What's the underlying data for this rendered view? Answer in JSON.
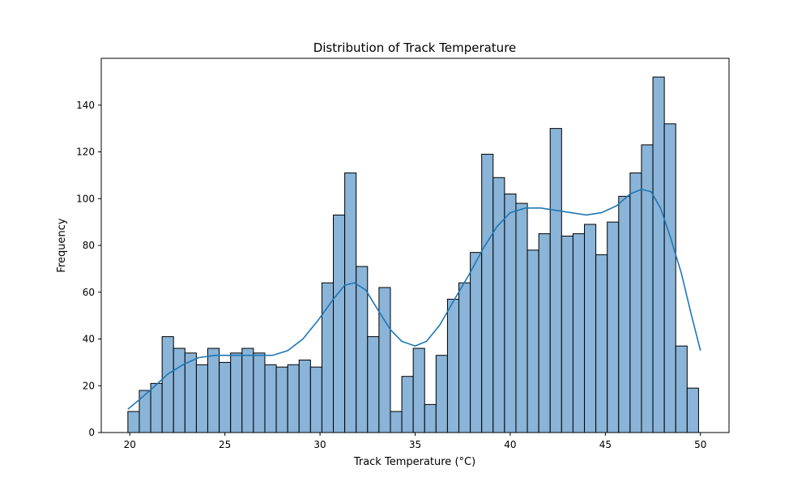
{
  "chart_data": {
    "type": "histogram",
    "title": "Distribution of Track Temperature",
    "xlabel": "Track Temperature (°C)",
    "ylabel": "Frequency",
    "xlim": [
      18.5,
      51.5
    ],
    "ylim": [
      0,
      160
    ],
    "xticks": [
      20,
      25,
      30,
      35,
      40,
      45,
      50
    ],
    "yticks": [
      0,
      20,
      40,
      60,
      80,
      100,
      120,
      140
    ],
    "bin_start": 19.9,
    "bin_width": 0.6,
    "counts": [
      9,
      18,
      21,
      41,
      36,
      34,
      29,
      36,
      30,
      34,
      36,
      34,
      29,
      28,
      29,
      31,
      28,
      64,
      93,
      111,
      71,
      41,
      62,
      9,
      24,
      36,
      12,
      33,
      57,
      64,
      77,
      119,
      109,
      102,
      98,
      78,
      85,
      130,
      84,
      85,
      89,
      76,
      90,
      101,
      111,
      123,
      152,
      132,
      37,
      19
    ],
    "bar_color": "#8ab4d8",
    "bar_edge_color": "#000000",
    "kde": {
      "color": "#1f77b4",
      "points": [
        [
          19.9,
          10
        ],
        [
          20.5,
          14
        ],
        [
          21.2,
          19
        ],
        [
          22.0,
          25
        ],
        [
          22.8,
          29
        ],
        [
          23.6,
          32
        ],
        [
          24.5,
          33
        ],
        [
          25.5,
          33
        ],
        [
          26.5,
          33
        ],
        [
          27.5,
          33
        ],
        [
          28.3,
          35
        ],
        [
          29.1,
          40
        ],
        [
          29.9,
          48
        ],
        [
          30.7,
          57
        ],
        [
          31.3,
          63
        ],
        [
          31.8,
          64
        ],
        [
          32.4,
          61
        ],
        [
          33.0,
          53
        ],
        [
          33.7,
          44
        ],
        [
          34.3,
          39
        ],
        [
          35.0,
          37
        ],
        [
          35.6,
          39
        ],
        [
          36.3,
          46
        ],
        [
          37.0,
          56
        ],
        [
          37.8,
          67
        ],
        [
          38.6,
          79
        ],
        [
          39.3,
          88
        ],
        [
          40.0,
          94
        ],
        [
          40.8,
          96
        ],
        [
          41.6,
          96
        ],
        [
          42.4,
          95
        ],
        [
          43.2,
          94
        ],
        [
          44.0,
          93
        ],
        [
          44.8,
          94
        ],
        [
          45.6,
          97
        ],
        [
          46.3,
          102
        ],
        [
          46.9,
          104
        ],
        [
          47.4,
          103
        ],
        [
          47.9,
          96
        ],
        [
          48.4,
          84
        ],
        [
          49.0,
          68
        ],
        [
          49.5,
          51
        ],
        [
          50.0,
          35
        ]
      ]
    }
  }
}
